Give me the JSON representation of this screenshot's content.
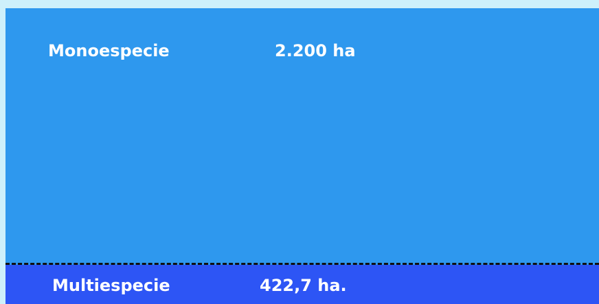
{
  "rows": [
    {
      "label": "Monoespecie",
      "value": "2.200 ha"
    },
    {
      "label": "Multiespecie",
      "value": "422,7 ha."
    }
  ]
}
